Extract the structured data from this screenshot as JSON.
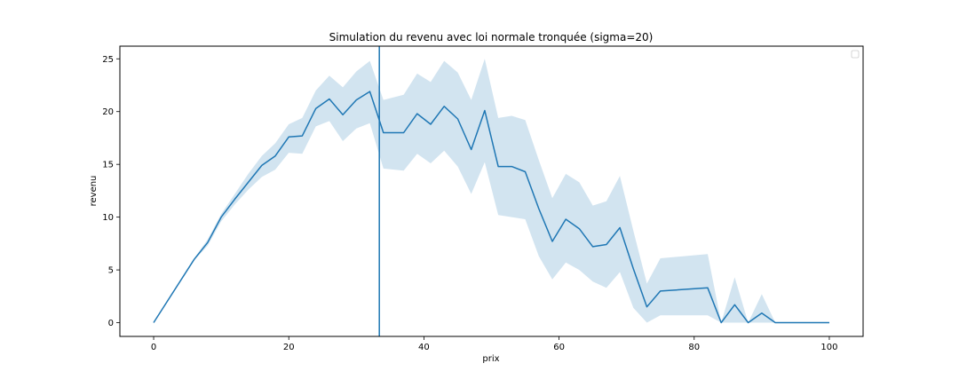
{
  "chart_data": {
    "type": "line",
    "title": "Simulation du revenu avec loi normale tronquée (sigma=20)",
    "xlabel": "prix",
    "ylabel": "revenu",
    "xlim": [
      -5,
      105
    ],
    "ylim": [
      -1.3,
      26.2
    ],
    "xticks": [
      0,
      20,
      40,
      60,
      80,
      100
    ],
    "yticks": [
      0,
      5,
      10,
      15,
      20,
      25
    ],
    "grid": false,
    "legend": "upper-right (empty)",
    "colors": {
      "line": "#1f77b4",
      "band": "#1f77b4"
    },
    "vline_x": 33.4,
    "series": [
      {
        "x": [
          0,
          6,
          8,
          10,
          12,
          14,
          16,
          18,
          20,
          22,
          24,
          26,
          28,
          30,
          32,
          34,
          37,
          39,
          41,
          43,
          45,
          47,
          49,
          51,
          53,
          55,
          57,
          59,
          61,
          63,
          65,
          67,
          69,
          71,
          73,
          75,
          82,
          84,
          86,
          88,
          90,
          92,
          100
        ],
        "y": [
          0,
          6.0,
          7.6,
          10.0,
          11.7,
          13.3,
          14.9,
          15.8,
          17.6,
          17.7,
          20.3,
          21.2,
          19.7,
          21.1,
          21.9,
          18.0,
          18.0,
          19.8,
          18.8,
          20.5,
          19.3,
          16.4,
          20.1,
          14.8,
          14.8,
          14.3,
          10.8,
          7.7,
          9.8,
          8.9,
          7.2,
          7.4,
          9.0,
          5.1,
          1.5,
          3.0,
          3.3,
          0.0,
          1.7,
          0.0,
          0.9,
          0.0,
          0.0
        ],
        "lower": [
          0,
          5.9,
          7.3,
          9.6,
          11.2,
          12.6,
          13.8,
          14.5,
          16.1,
          16.0,
          18.6,
          19.1,
          17.2,
          18.4,
          18.9,
          14.6,
          14.4,
          16.0,
          15.1,
          16.3,
          14.8,
          12.2,
          15.2,
          10.2,
          10.0,
          9.8,
          6.3,
          4.1,
          5.7,
          5.0,
          3.9,
          3.3,
          4.8,
          1.4,
          0.0,
          0.7,
          0.7,
          0.0,
          0.0,
          0.0,
          0.0,
          0.0,
          0.0
        ],
        "upper": [
          0,
          6.1,
          7.9,
          10.3,
          12.2,
          14.1,
          15.8,
          17.0,
          18.8,
          19.4,
          22.0,
          23.4,
          22.3,
          23.8,
          24.8,
          21.1,
          21.6,
          23.6,
          22.8,
          24.8,
          23.7,
          21.1,
          25.0,
          19.4,
          19.6,
          19.2,
          15.4,
          11.8,
          14.1,
          13.3,
          11.1,
          11.5,
          13.9,
          8.7,
          3.7,
          6.1,
          6.5,
          0.0,
          4.3,
          0.0,
          2.7,
          0.0,
          0.0
        ]
      }
    ]
  }
}
